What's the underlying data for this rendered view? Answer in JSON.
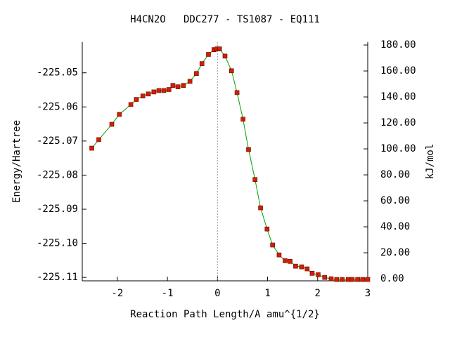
{
  "chart_data": {
    "type": "line",
    "title": "H4CN2O   DDC277 - TS1087 - EQ111",
    "xlabel": "Reaction Path Length/A amu^{1/2}",
    "ylabel": "Energy/Hartree",
    "y2label": "kJ/mol",
    "xlim": [
      -2.7,
      3
    ],
    "xticks": [
      -2,
      -1,
      0,
      1,
      2,
      3
    ],
    "ylim": [
      -225.111,
      -225.041
    ],
    "yticks": [
      -225.11,
      {
        "value": -225.1,
        "label": "-225.10"
      },
      -225.09,
      -225.08,
      -225.07,
      -225.06,
      -225.05
    ],
    "y2lim": [
      -1.6,
      182.2
    ],
    "y2ticks": [
      {
        "value": 0,
        "label": "0.00"
      },
      {
        "value": 20,
        "label": "20.00"
      },
      {
        "value": 40,
        "label": "40.00"
      },
      {
        "value": 60,
        "label": "60.00"
      },
      {
        "value": 80,
        "label": "80.00"
      },
      {
        "value": 100,
        "label": "100.00"
      },
      {
        "value": 120,
        "label": "120.00"
      },
      {
        "value": 140,
        "label": "140.00"
      },
      {
        "value": 160,
        "label": "160.00"
      },
      {
        "value": 180,
        "label": "180.00"
      }
    ],
    "vlines": [
      0
    ],
    "series": [
      {
        "color": "#00a000",
        "marker_color": "#d02000",
        "x": [
          -2.51,
          -2.37,
          -2.11,
          -1.96,
          -1.73,
          -1.62,
          -1.49,
          -1.38,
          -1.27,
          -1.17,
          -1.07,
          -0.97,
          -0.89,
          -0.79,
          -0.68,
          -0.55,
          -0.42,
          -0.31,
          -0.18,
          -0.07,
          -0.01,
          0.04,
          0.15,
          0.28,
          0.39,
          0.51,
          0.62,
          0.75,
          0.86,
          0.99,
          1.1,
          1.23,
          1.35,
          1.45,
          1.56,
          1.68,
          1.79,
          1.89,
          2.01,
          2.14,
          2.27,
          2.38,
          2.49,
          2.61,
          2.69,
          2.8,
          2.9,
          3.0
        ],
        "values": [
          -225.0721,
          -225.0696,
          -225.0651,
          -225.0622,
          -225.0593,
          -225.0578,
          -225.0568,
          -225.0562,
          -225.0556,
          -225.0552,
          -225.0552,
          -225.0549,
          -225.0537,
          -225.0541,
          -225.0537,
          -225.0525,
          -225.0502,
          -225.0473,
          -225.0446,
          -225.0432,
          -225.043,
          -225.043,
          -225.0451,
          -225.0494,
          -225.0558,
          -225.0636,
          -225.0725,
          -225.0813,
          -225.0896,
          -225.0958,
          -225.1005,
          -225.1034,
          -225.1051,
          -225.1053,
          -225.1067,
          -225.1069,
          -225.1075,
          -225.1088,
          -225.1092,
          -225.11,
          -225.1104,
          -225.1106,
          -225.1106,
          -225.1106,
          -225.1106,
          -225.1106,
          -225.1106,
          -225.1106
        ]
      }
    ]
  }
}
